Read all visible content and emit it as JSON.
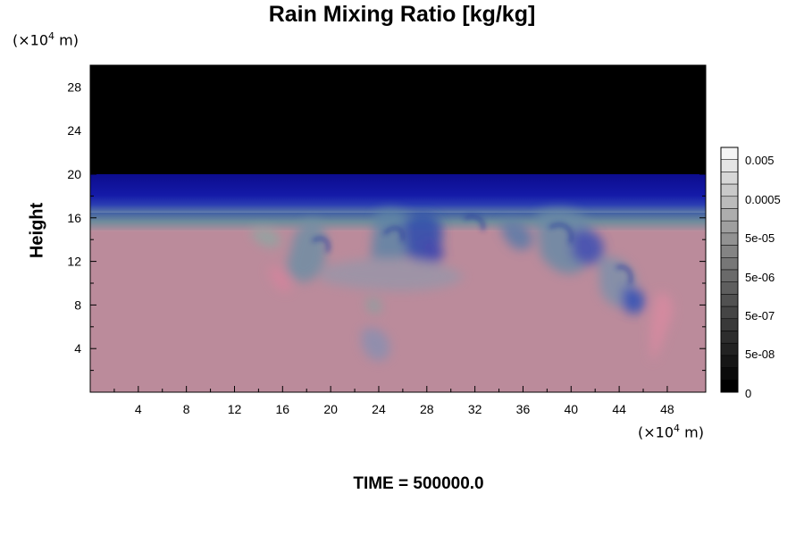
{
  "chart_data": {
    "type": "heatmap",
    "title": "Rain Mixing Ratio [kg/kg]",
    "ylabel": "Height",
    "xunit": "(×10",
    "xunit_exp": "4",
    "xunit_tail": " m)",
    "yunit": "(×10",
    "yunit_exp": "4",
    "yunit_tail": " m)",
    "xlim": [
      0,
      51.2
    ],
    "ylim": [
      0,
      30
    ],
    "x_ticks": [
      "4",
      "8",
      "12",
      "16",
      "20",
      "24",
      "28",
      "32",
      "36",
      "40",
      "44",
      "48"
    ],
    "y_ticks": [
      "4",
      "8",
      "12",
      "16",
      "20",
      "24",
      "28"
    ],
    "colorbar_labels": [
      "0.005",
      "0.0005",
      "5e-05",
      "5e-06",
      "5e-07",
      "5e-08",
      "0"
    ],
    "footer": "TIME = 500000.0",
    "layers": [
      {
        "name": "top region",
        "y_range": [
          20,
          30
        ],
        "color": "#000000"
      },
      {
        "name": "upper band",
        "y_range": [
          16.5,
          20
        ],
        "color": "#0f0f95"
      },
      {
        "name": "transition band",
        "y_range": [
          14.8,
          16.5
        ],
        "color": "#4a6aa0"
      },
      {
        "name": "lower region",
        "y_range": [
          0,
          14.8
        ],
        "color": "#bb8b9b"
      }
    ]
  }
}
